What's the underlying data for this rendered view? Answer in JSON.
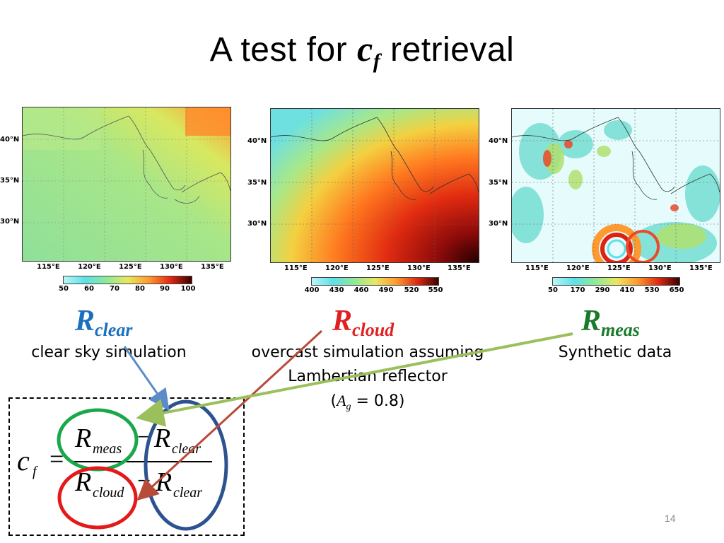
{
  "title": {
    "prefix": "A test for ",
    "var": "c",
    "sub": "f",
    "suffix": " retrieval"
  },
  "maps": [
    {
      "lat_labels": [
        "40°N",
        "35°N",
        "30°N"
      ],
      "lon_labels": [
        "115°E",
        "120°E",
        "125°E",
        "130°E",
        "135°E"
      ],
      "colorbar_ticks": [
        "50",
        "60",
        "70",
        "80",
        "90",
        "100"
      ],
      "colorbar_colors": [
        "#b8f6f6",
        "#5ee0e8",
        "#8fe89a",
        "#e8e860",
        "#ff9a30",
        "#e02a10",
        "#3a0000"
      ]
    },
    {
      "lat_labels": [
        "40°N",
        "35°N",
        "30°N"
      ],
      "lon_labels": [
        "115°E",
        "120°E",
        "125°E",
        "130°E",
        "135°E"
      ],
      "colorbar_ticks": [
        "400",
        "430",
        "460",
        "490",
        "520",
        "550"
      ],
      "colorbar_colors": [
        "#b8f6f6",
        "#5ee0e8",
        "#8fe89a",
        "#e8e860",
        "#ff9a30",
        "#e02a10",
        "#3a0000"
      ]
    },
    {
      "lat_labels": [
        "40°N",
        "35°N",
        "30°N"
      ],
      "lon_labels": [
        "115°E",
        "120°E",
        "125°E",
        "130°E",
        "135°E"
      ],
      "colorbar_ticks": [
        "50",
        "170",
        "290",
        "410",
        "530",
        "650"
      ],
      "colorbar_colors": [
        "#b8f6f6",
        "#5ee0e8",
        "#8fe89a",
        "#e8e860",
        "#ff9a30",
        "#e02a10",
        "#3a0000"
      ]
    }
  ],
  "labels": {
    "clear": {
      "R": "R",
      "sub": "clear",
      "desc": "clear sky simulation",
      "color": "#1a6fbf"
    },
    "cloud": {
      "R": "R",
      "sub": "cloud",
      "desc_line1": "overcast simulation assuming",
      "desc_line2": "Lambertian reflector",
      "desc_line3_open": "(",
      "desc_line3_var": "A",
      "desc_line3_sub": "g",
      "desc_line3_rest": " = 0.8)",
      "color": "#e02020"
    },
    "meas": {
      "R": "R",
      "sub": "meas",
      "desc": "Synthetic data",
      "color": "#1a7a2a"
    }
  },
  "formula": {
    "lhs": "c",
    "lhs_sub": "f",
    "equals": "=",
    "num_a": "R",
    "num_a_sub": "meas",
    "minus_top": "−",
    "num_b": "R",
    "num_b_sub": "clear",
    "den_a": "R",
    "den_a_sub": "cloud",
    "minus_bottom": "−",
    "den_b": "R",
    "den_b_sub": "clear"
  },
  "colors": {
    "ellipse_green": "#1aa84a",
    "ellipse_red": "#e41a1a",
    "ellipse_blue": "#2d5290",
    "arrow_blue": "#5b8cc8",
    "arrow_red": "#b84a3a",
    "arrow_green": "#9bbf5a"
  },
  "page_number": "14"
}
